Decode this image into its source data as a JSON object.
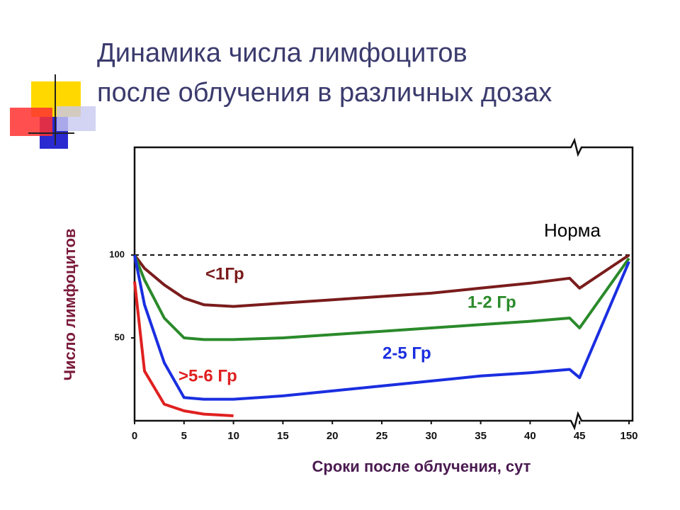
{
  "chart_data": {
    "type": "line",
    "title": [
      "Динамика числа лимфоцитов",
      "после облучения в различных дозах"
    ],
    "x_label": "Сроки после облучения, сут",
    "y_label": "Число лимфоцитов",
    "norm_label": "Норма",
    "norm_value": 100,
    "x": [
      0,
      1,
      3,
      5,
      7,
      10,
      15,
      20,
      25,
      30,
      35,
      40,
      44,
      45,
      150
    ],
    "xticks": [
      0,
      5,
      10,
      15,
      20,
      25,
      30,
      35,
      40,
      45,
      150
    ],
    "ylim": [
      0,
      165
    ],
    "yticks": [
      50,
      100
    ],
    "series": [
      {
        "name": "<1Гр",
        "color": "#7a1c1c",
        "values": [
          100,
          92,
          82,
          74,
          70,
          69,
          71,
          73,
          75,
          77,
          80,
          83,
          86,
          80,
          100
        ]
      },
      {
        "name": "1-2 Гр",
        "color": "#2a8a2a",
        "values": [
          100,
          85,
          62,
          50,
          49,
          49,
          50,
          52,
          54,
          56,
          58,
          60,
          62,
          56,
          98
        ]
      },
      {
        "name": "2-5 Гр",
        "color": "#1a2ee0",
        "values": [
          100,
          70,
          35,
          14,
          13,
          13,
          15,
          18,
          21,
          24,
          27,
          29,
          31,
          26,
          96
        ]
      },
      {
        "name": ">5-6 Гр",
        "color": "#e02020",
        "values": [
          84,
          30,
          10,
          6,
          4,
          3,
          null,
          null,
          null,
          null,
          null,
          null,
          null,
          null,
          null
        ]
      }
    ]
  }
}
